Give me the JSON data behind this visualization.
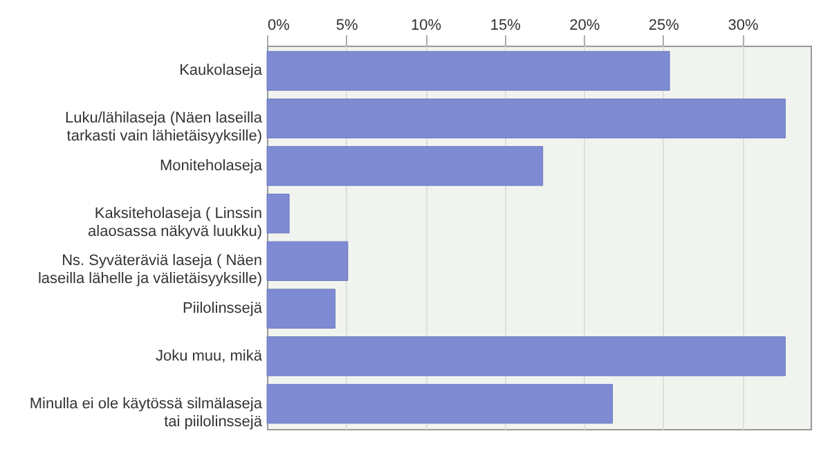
{
  "chart_data": {
    "type": "bar",
    "orientation": "horizontal",
    "categories": [
      "Kaukolaseja",
      "Luku/lähilaseja (Näen laseilla\ntarkasti vain lähietäisyyksille)",
      "Moniteholaseja",
      "Kaksiteholaseja ( Linssin\nalaosassa näkyvä luukku)",
      "Ns. Syväteräviä laseja ( Näen\nlaseilla lähelle ja välietäisyyksille)",
      "Piilolinssejä",
      "Joku muu, mikä",
      "Minulla ei ole käytössä silmälaseja\ntai piilolinssejä"
    ],
    "values": [
      25.4,
      32.7,
      17.4,
      1.4,
      5.1,
      4.3,
      32.7,
      21.8
    ],
    "color": "#7e8bd3",
    "xlim": [
      0,
      34.3
    ],
    "xticks": [
      {
        "value": 0,
        "label": "0%"
      },
      {
        "value": 5,
        "label": "5%"
      },
      {
        "value": 10,
        "label": "10%"
      },
      {
        "value": 15,
        "label": "15%"
      },
      {
        "value": 20,
        "label": "20%"
      },
      {
        "value": 25,
        "label": "25%"
      },
      {
        "value": 30,
        "label": "30%"
      }
    ],
    "grid": "x"
  }
}
